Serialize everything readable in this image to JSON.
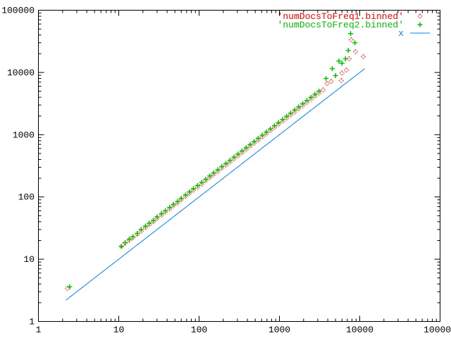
{
  "chart_data": {
    "type": "scatter",
    "title": "",
    "xlabel": "",
    "ylabel": "",
    "xscale": "log",
    "yscale": "log",
    "xlim": [
      1,
      100000
    ],
    "ylim": [
      1,
      100000
    ],
    "grid": false,
    "legend_placement": "top-right",
    "x_tick_labels": [
      "1",
      "10",
      "100",
      "1000",
      "10000",
      "100000"
    ],
    "y_tick_labels": [
      "1",
      "10",
      "100",
      "1000",
      "10000",
      "100000"
    ],
    "series": [
      {
        "name": "'numDocsToFreq1.binned'",
        "style": "points",
        "marker": "diamond",
        "color": "#ff0000",
        "points": [
          [
            2.3,
            3.4
          ],
          [
            10.8,
            16
          ],
          [
            12,
            18
          ],
          [
            13.5,
            20
          ],
          [
            15,
            22
          ],
          [
            17,
            25
          ],
          [
            19,
            28
          ],
          [
            21.5,
            32
          ],
          [
            24,
            36
          ],
          [
            27,
            40
          ],
          [
            30,
            45
          ],
          [
            34,
            51
          ],
          [
            38,
            57
          ],
          [
            43,
            64
          ],
          [
            48,
            72
          ],
          [
            54,
            80
          ],
          [
            60,
            90
          ],
          [
            68,
            102
          ],
          [
            76,
            114
          ],
          [
            85,
            128
          ],
          [
            96,
            143
          ],
          [
            108,
            160
          ],
          [
            121,
            182
          ],
          [
            136,
            204
          ],
          [
            152,
            228
          ],
          [
            171,
            256
          ],
          [
            192,
            290
          ],
          [
            216,
            325
          ],
          [
            242,
            362
          ],
          [
            272,
            408
          ],
          [
            305,
            458
          ],
          [
            343,
            515
          ],
          [
            385,
            578
          ],
          [
            432,
            650
          ],
          [
            485,
            730
          ],
          [
            545,
            818
          ],
          [
            612,
            918
          ],
          [
            687,
            1030
          ],
          [
            772,
            1160
          ],
          [
            867,
            1300
          ],
          [
            973,
            1460
          ],
          [
            1093,
            1640
          ],
          [
            1228,
            1840
          ],
          [
            1379,
            2070
          ],
          [
            1549,
            2320
          ],
          [
            1740,
            2610
          ],
          [
            1954,
            2930
          ],
          [
            2195,
            3290
          ],
          [
            2465,
            3700
          ],
          [
            2768,
            4150
          ],
          [
            3109,
            4660
          ],
          [
            3492,
            5240
          ],
          [
            3922,
            6600
          ],
          [
            4405,
            7200
          ],
          [
            5900,
            7400
          ],
          [
            6000,
            9800
          ],
          [
            6820,
            10900
          ],
          [
            7380,
            16600
          ],
          [
            7850,
            33500
          ],
          [
            8850,
            21500
          ],
          [
            11060,
            17900
          ]
        ]
      },
      {
        "name": "'numDocsToFreq2.binned'",
        "style": "points",
        "marker": "plus",
        "color": "#00c000",
        "points": [
          [
            2.45,
            3.6
          ],
          [
            10.8,
            16
          ],
          [
            12,
            18.5
          ],
          [
            13.5,
            21
          ],
          [
            15,
            23
          ],
          [
            17,
            26
          ],
          [
            19,
            30
          ],
          [
            21.5,
            34
          ],
          [
            24,
            38
          ],
          [
            27,
            42
          ],
          [
            30,
            48
          ],
          [
            34,
            54
          ],
          [
            38,
            60
          ],
          [
            43,
            68
          ],
          [
            48,
            76
          ],
          [
            54,
            85
          ],
          [
            60,
            95
          ],
          [
            68,
            108
          ],
          [
            76,
            121
          ],
          [
            85,
            136
          ],
          [
            96,
            153
          ],
          [
            108,
            172
          ],
          [
            121,
            193
          ],
          [
            136,
            218
          ],
          [
            152,
            244
          ],
          [
            171,
            274
          ],
          [
            192,
            308
          ],
          [
            216,
            346
          ],
          [
            242,
            388
          ],
          [
            272,
            436
          ],
          [
            305,
            490
          ],
          [
            343,
            550
          ],
          [
            385,
            618
          ],
          [
            432,
            695
          ],
          [
            485,
            780
          ],
          [
            545,
            876
          ],
          [
            612,
            985
          ],
          [
            687,
            1105
          ],
          [
            772,
            1240
          ],
          [
            867,
            1395
          ],
          [
            973,
            1565
          ],
          [
            1093,
            1760
          ],
          [
            1228,
            1980
          ],
          [
            1379,
            2220
          ],
          [
            1549,
            2500
          ],
          [
            1740,
            2800
          ],
          [
            1954,
            3150
          ],
          [
            2195,
            3540
          ],
          [
            2465,
            3980
          ],
          [
            2768,
            4470
          ],
          [
            3109,
            5020
          ],
          [
            3800,
            8000
          ],
          [
            4550,
            11500
          ],
          [
            5000,
            8900
          ],
          [
            5500,
            15300
          ],
          [
            6000,
            14100
          ],
          [
            6650,
            16600
          ],
          [
            7200,
            22600
          ],
          [
            7700,
            42000
          ],
          [
            8700,
            30000
          ]
        ]
      },
      {
        "name": "x",
        "style": "lines",
        "color": "#0080ff",
        "expression": "x",
        "xrange": [
          2.2,
          11500
        ]
      }
    ]
  }
}
